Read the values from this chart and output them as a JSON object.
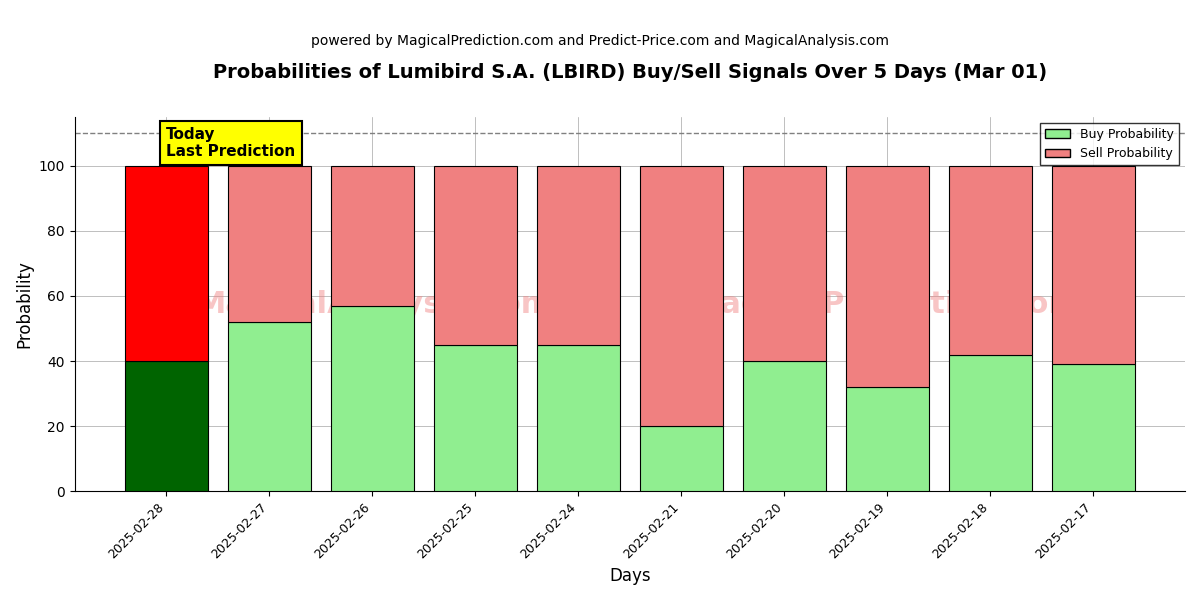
{
  "title": "Probabilities of Lumibird S.A. (LBIRD) Buy/Sell Signals Over 5 Days (Mar 01)",
  "subtitle": "powered by MagicalPrediction.com and Predict-Price.com and MagicalAnalysis.com",
  "xlabel": "Days",
  "ylabel": "Probability",
  "categories": [
    "2025-02-28",
    "2025-02-27",
    "2025-02-26",
    "2025-02-25",
    "2025-02-24",
    "2025-02-21",
    "2025-02-20",
    "2025-02-19",
    "2025-02-18",
    "2025-02-17"
  ],
  "buy_values": [
    40,
    52,
    57,
    45,
    45,
    20,
    40,
    32,
    42,
    39
  ],
  "sell_values": [
    60,
    48,
    43,
    55,
    55,
    80,
    60,
    68,
    58,
    61
  ],
  "buy_color_today": "#006400",
  "sell_color_today": "#ff0000",
  "buy_color_normal": "#90EE90",
  "sell_color_normal": "#F08080",
  "bar_edge_color": "black",
  "bar_edge_width": 0.8,
  "today_box_color": "#ffff00",
  "today_box_text": "Today\nLast Prediction",
  "dashed_line_y": 110,
  "ylim": [
    0,
    115
  ],
  "yticks": [
    0,
    20,
    40,
    60,
    80,
    100
  ],
  "watermark_line1": "MagicalAnalysis.com",
  "watermark_line2": "MagicalPrediction.com",
  "watermark_color": "#F08080",
  "watermark_alpha": 0.45,
  "watermark_fontsize": 22,
  "legend_buy_label": "Buy Probability",
  "legend_sell_label": "Sell Probability",
  "figsize": [
    12,
    6
  ],
  "dpi": 100,
  "title_fontsize": 14,
  "subtitle_fontsize": 10,
  "axis_label_fontsize": 12,
  "tick_fontsize": 9,
  "legend_fontsize": 9,
  "today_annotation_fontsize": 11,
  "plot_bg_color": "#ffffff",
  "fig_bg_color": "#ffffff"
}
